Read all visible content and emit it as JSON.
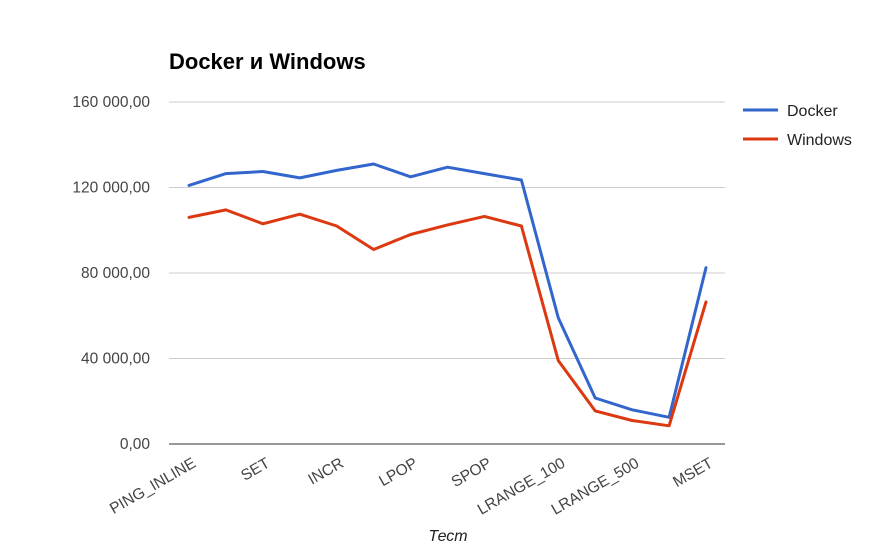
{
  "chart_data": {
    "type": "line",
    "title": "Docker и Windows",
    "xlabel": "Тест",
    "ylabel": "",
    "ylim": [
      0,
      160000
    ],
    "yticks": [
      0,
      40000,
      80000,
      120000,
      160000
    ],
    "ytick_labels": [
      "0,00",
      "40 000,00",
      "80 000,00",
      "120 000,00",
      "160 000,00"
    ],
    "grid": true,
    "legend_position": "right",
    "x": [
      0,
      0.5,
      1,
      1.5,
      2,
      2.5,
      3,
      3.5,
      4,
      4.5,
      5,
      5.5,
      6,
      6.5,
      7
    ],
    "x_tick_positions": [
      0,
      1,
      2,
      3,
      4,
      5,
      6,
      7
    ],
    "categories": [
      "PING_INLINE",
      "SET",
      "INCR",
      "LPOP",
      "SPOP",
      "LRANGE_100",
      "LRANGE_500",
      "MSET"
    ],
    "series": [
      {
        "name": "Docker",
        "color": "#3366cc",
        "values": [
          121000,
          126500,
          127500,
          124500,
          128000,
          131000,
          125000,
          129500,
          126500,
          123500,
          59000,
          21500,
          16000,
          12500,
          82500
        ]
      },
      {
        "name": "Windows",
        "color": "#dc3912",
        "values": [
          106000,
          109500,
          103000,
          107500,
          102000,
          91000,
          98000,
          102500,
          106500,
          102000,
          39000,
          15500,
          11000,
          8500,
          66500
        ]
      }
    ]
  }
}
